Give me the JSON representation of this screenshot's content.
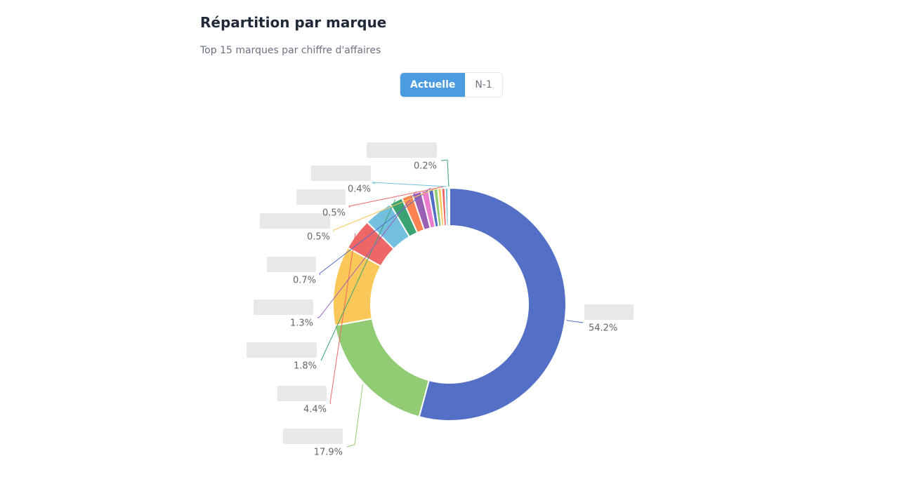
{
  "header": {
    "title": "Répartition par marque",
    "subtitle": "Top 15 marques par chiffre d'affaires"
  },
  "controls": {
    "options": [
      "Actuelle",
      "N-1"
    ],
    "active": 0
  },
  "chart_data": {
    "type": "pie",
    "values": [
      54.2,
      17.9,
      11.0,
      4.4,
      4.0,
      1.8,
      1.5,
      1.3,
      1.0,
      0.7,
      0.6,
      0.5,
      0.5,
      0.4,
      0.2
    ],
    "value_labels": [
      "54.2%",
      "17.9%",
      null,
      "4.4%",
      null,
      "1.8%",
      null,
      "1.3%",
      null,
      "0.7%",
      null,
      "0.5%",
      "0.5%",
      "0.4%",
      "0.2%"
    ],
    "colors": [
      "#5470c6",
      "#91cc75",
      "#fac858",
      "#ee6666",
      "#73c0de",
      "#3ba272",
      "#fc8452",
      "#9a60b4",
      "#ea7ccc",
      "#5470c6",
      "#91cc75",
      "#fac858",
      "#ee6666",
      "#73c0de",
      "#3ba272"
    ]
  }
}
